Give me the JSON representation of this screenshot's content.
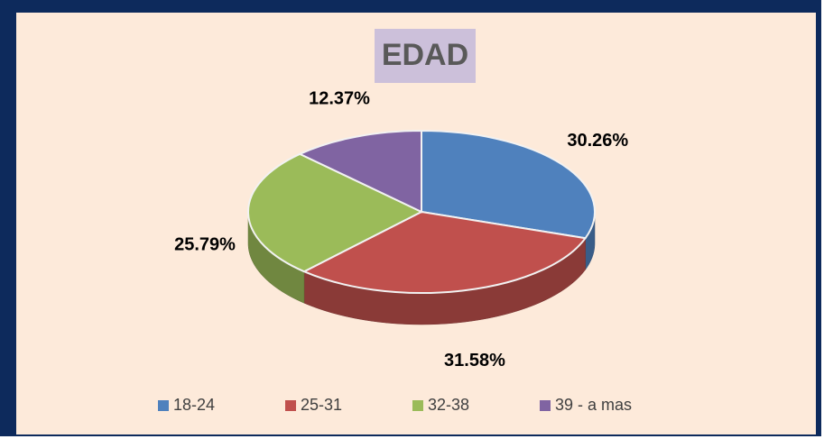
{
  "chart_data": {
    "type": "pie",
    "title": "EDAD",
    "categories": [
      "18-24",
      "25-31",
      "32-38",
      "39 - a mas"
    ],
    "values": [
      30.26,
      31.58,
      25.79,
      12.37
    ],
    "value_labels": [
      "30.26%",
      "31.58%",
      "25.79%",
      "12.37%"
    ],
    "colors": [
      "#4f81bd",
      "#c0504d",
      "#9bbb59",
      "#8064a2"
    ],
    "legend": "bottom"
  }
}
